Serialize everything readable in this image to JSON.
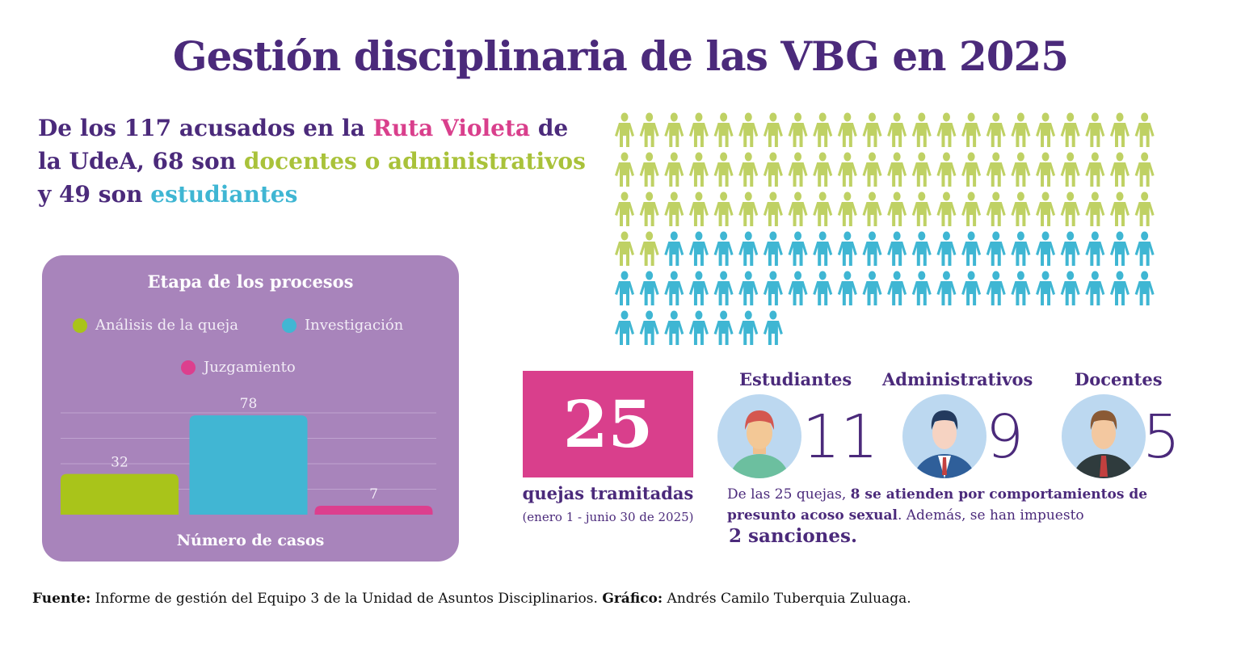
{
  "title": "Gestión disciplinaria de las VBG en 2025",
  "headline": {
    "p1": "De los ",
    "total": "117 acusados",
    "p2": " en la ",
    "ruta": "Ruta Violeta",
    "p3": " de la UdeA, 68 son ",
    "docadm": "docentes o administrativos",
    "p4": " y 49 son ",
    "est": "estudiantes"
  },
  "pictogram": {
    "total": 117,
    "docentes_administrativos": 68,
    "estudiantes": 49,
    "per_row": 22
  },
  "colors": {
    "purple": "#4b2a7b",
    "pink": "#d93f8c",
    "green": "#a9c23a",
    "blue": "#3fb6d3",
    "panel": "#a884bb"
  },
  "chart_data": {
    "type": "bar",
    "title": "Etapa de los procesos",
    "xlabel": "Número de casos",
    "ylabel": "",
    "ylim": [
      0,
      80
    ],
    "grid": true,
    "legend_placement": "top",
    "categories": [
      "Análisis de la queja",
      "Investigación",
      "Juzgamiento"
    ],
    "values": [
      32,
      78,
      7
    ],
    "colors": [
      "#a9c41a",
      "#41b6d3",
      "#dc3f8e"
    ]
  },
  "quejas": {
    "count": "25",
    "label": "quejas tramitadas",
    "period": "(enero 1 - junio 30 de 2025)"
  },
  "groups": [
    {
      "label": "Estudiantes",
      "value": "11"
    },
    {
      "label": "Administrativos",
      "value": "9"
    },
    {
      "label": "Docentes",
      "value": "5"
    }
  ],
  "desc": {
    "p1": "De las 25 quejas, ",
    "b1": "8 se atienden por comportamientos de presunto acoso sexual",
    "p2": ". Además, se han impuesto",
    "sanciones": "2 sanciones."
  },
  "footer": {
    "fuente_label": "Fuente:",
    "fuente": " Informe de gestión del Equipo 3 de la Unidad de Asuntos Disciplinarios. ",
    "grafico_label": "Gráfico:",
    "grafico": " Andrés Camilo Tuberquia Zuluaga."
  }
}
